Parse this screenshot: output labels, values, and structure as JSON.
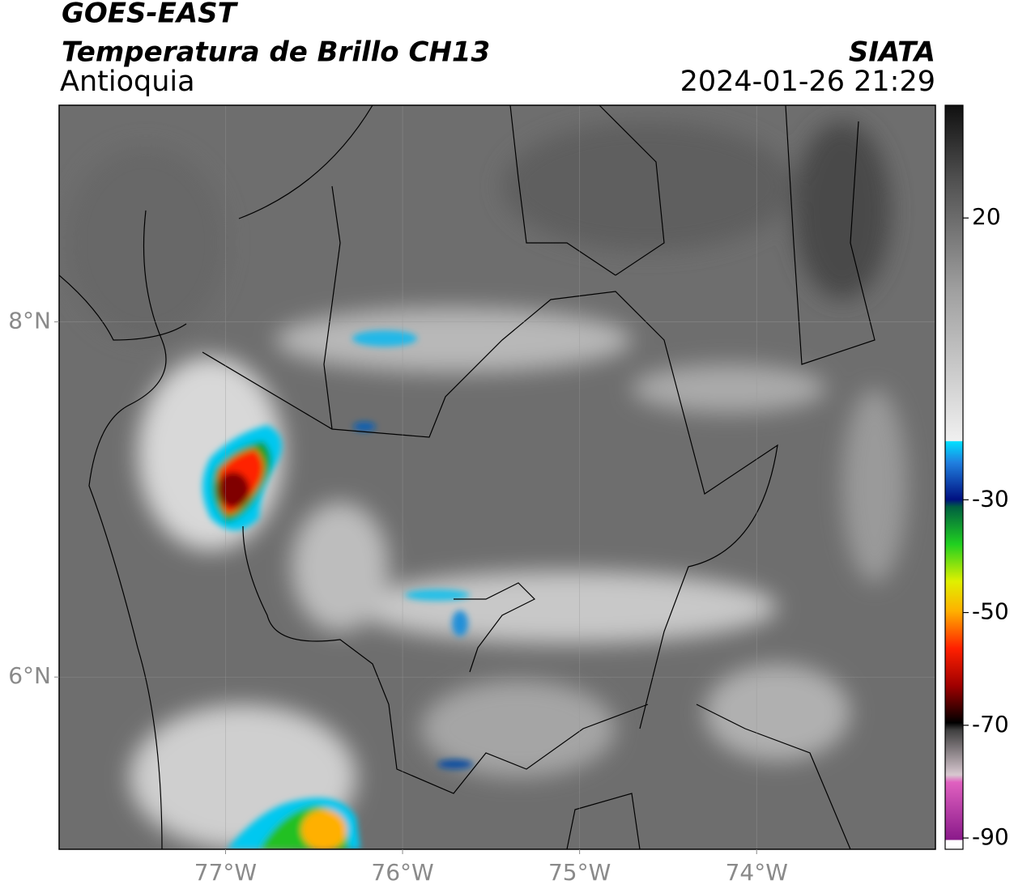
{
  "header": {
    "title": "GOES-EAST",
    "subtitle": "Temperatura de Brillo CH13",
    "region": "Antioquia",
    "source": "SIATA",
    "datetime": "2024-01-26 21:29"
  },
  "map": {
    "xlim": [
      -77.94,
      -72.99
    ],
    "ylim": [
      5.03,
      9.22
    ],
    "grid": true,
    "xticks": [
      {
        "value": -77,
        "label": "77°W"
      },
      {
        "value": -76,
        "label": "76°W"
      },
      {
        "value": -75,
        "label": "75°W"
      },
      {
        "value": -74,
        "label": "74°W"
      }
    ],
    "yticks": [
      {
        "value": 8,
        "label": "8°N"
      },
      {
        "value": 6,
        "label": "6°N"
      }
    ]
  },
  "colorbar": {
    "lim": [
      -92,
      40
    ],
    "ticks": [
      20,
      -30,
      -50,
      -70,
      -90
    ]
  }
}
